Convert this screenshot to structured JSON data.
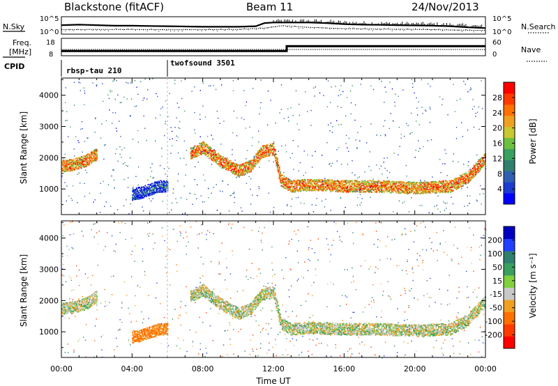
{
  "header": {
    "title": "Blackstone (fitACF)",
    "beam": "Beam 11",
    "date": "24/Nov/2013"
  },
  "chart_data": [
    {
      "type": "line",
      "name": "noise-panel",
      "left_label": "N.Sky",
      "right_label": "N.Search",
      "left_ticks": [
        "10^5",
        "10^0"
      ],
      "right_ticks": [
        "10^5",
        "10^0"
      ],
      "series": [
        {
          "name": "N.Sky",
          "x_hours": [
            0,
            1,
            2,
            3,
            4,
            5,
            6,
            7,
            8,
            9,
            10,
            11,
            11.5,
            12,
            13,
            14,
            15,
            16,
            17,
            18,
            19,
            20,
            21,
            22,
            23,
            24
          ],
          "y_log": [
            2.6,
            2.8,
            2.6,
            2.4,
            2.4,
            2.3,
            2.2,
            2.1,
            2.0,
            2.0,
            2.0,
            2.2,
            3.4,
            3.6,
            3.6,
            3.6,
            3.4,
            3.0,
            2.8,
            2.7,
            2.6,
            2.5,
            2.4,
            2.2,
            1.8,
            1.5
          ]
        },
        {
          "name": "N.Search",
          "x_hours": [
            0,
            2,
            4,
            6,
            8,
            10,
            11.5,
            12.5,
            14,
            16,
            18,
            20,
            22,
            24
          ],
          "y_log": [
            0.9,
            1.0,
            1.0,
            0.9,
            0.9,
            1.0,
            1.5,
            2.4,
            1.8,
            1.3,
            1.1,
            1.0,
            0.8,
            0.6
          ]
        }
      ]
    },
    {
      "type": "line",
      "name": "frequency-panel",
      "left_label_lines": [
        "Freq.",
        "[MHz]"
      ],
      "right_label": "Nave",
      "left_ticks": [
        "18",
        "8"
      ],
      "right_ticks": [
        "60",
        "0"
      ],
      "series": [
        {
          "name": "Freq",
          "x_hours": [
            0,
            12.75,
            12.75,
            24
          ],
          "y_mhz": [
            10.5,
            10.5,
            14.2,
            14.2
          ]
        },
        {
          "name": "Nave",
          "x_hours": [
            0,
            24
          ],
          "y": [
            22,
            22
          ]
        }
      ]
    },
    {
      "type": "table",
      "name": "cpid-panel",
      "label": "CPID",
      "segments": [
        {
          "name": "rbsp-tau 210",
          "start_hour": 0
        },
        {
          "name": "twofsound 3501",
          "start_hour": 6
        }
      ]
    },
    {
      "type": "heatmap",
      "name": "power-panel",
      "ylabel": "Slant Range [km]",
      "yticks": [
        1000,
        2000,
        3000,
        4000
      ],
      "ylim": [
        180,
        4550
      ],
      "xlim": [
        0,
        24
      ],
      "colorbar": {
        "label": "Power [dB]",
        "ticks": [
          4,
          8,
          12,
          16,
          20,
          24,
          28
        ],
        "colors": [
          "#0000ff",
          "#1c3bd0",
          "#2f5fb0",
          "#2f7f6f",
          "#3aa060",
          "#6cc040",
          "#c8c830",
          "#f0a020",
          "#ff7000",
          "#ff3a00",
          "#ff0000"
        ]
      },
      "echo_bands": [
        {
          "x_hours": [
            0,
            0.5,
            1,
            1.5,
            2
          ],
          "range_km": [
            1750,
            1780,
            1850,
            1950,
            2150
          ],
          "power_db": 24
        },
        {
          "x_hours": [
            7.3,
            8,
            9,
            10,
            10.7,
            11.3,
            12,
            12.4,
            13,
            14,
            16,
            18,
            20,
            22,
            23,
            24
          ],
          "range_km": [
            2150,
            2350,
            1900,
            1600,
            1750,
            2200,
            2300,
            1300,
            1100,
            1150,
            1100,
            1100,
            1050,
            1100,
            1400,
            2000
          ],
          "power_db": 24
        },
        {
          "x_hours": [
            4,
            4.5,
            5,
            5.5,
            6
          ],
          "range_km": [
            850,
            900,
            1000,
            1100,
            1100
          ],
          "power_db": 8
        }
      ]
    },
    {
      "type": "heatmap",
      "name": "velocity-panel",
      "ylabel": "Slant Range [km]",
      "yticks": [
        1000,
        2000,
        3000,
        4000
      ],
      "ylim": [
        180,
        4550
      ],
      "xlim": [
        0,
        24
      ],
      "xticks": [
        "00:00",
        "04:00",
        "08:00",
        "12:00",
        "16:00",
        "20:00",
        "00:00"
      ],
      "xlabel": "Time UT",
      "colorbar": {
        "label": "Velocity [m s^-1]",
        "ticks": [
          200,
          100,
          50,
          15,
          -15,
          -50,
          -100,
          -200
        ],
        "colors": [
          "#0000c0",
          "#2040ff",
          "#2f7f6f",
          "#3aa060",
          "#80d040",
          "#c8c8c8",
          "#f0a020",
          "#ff7000",
          "#ff3a00",
          "#ff0000"
        ]
      },
      "echo_bands": [
        {
          "x_hours": [
            0,
            0.5,
            1,
            1.5,
            2
          ],
          "range_km": [
            1750,
            1780,
            1850,
            1950,
            2150
          ],
          "velocity": 0
        },
        {
          "x_hours": [
            7.3,
            8,
            9,
            10,
            10.7,
            11.3,
            12,
            12.4,
            13,
            14,
            16,
            18,
            20,
            22,
            23,
            24
          ],
          "range_km": [
            2150,
            2350,
            1900,
            1600,
            1750,
            2200,
            2300,
            1300,
            1100,
            1150,
            1100,
            1100,
            1050,
            1100,
            1400,
            2000
          ],
          "velocity": 0
        },
        {
          "x_hours": [
            4,
            4.5,
            5,
            5.5,
            6
          ],
          "range_km": [
            850,
            900,
            1000,
            1100,
            1100
          ],
          "velocity": -60
        }
      ]
    }
  ]
}
